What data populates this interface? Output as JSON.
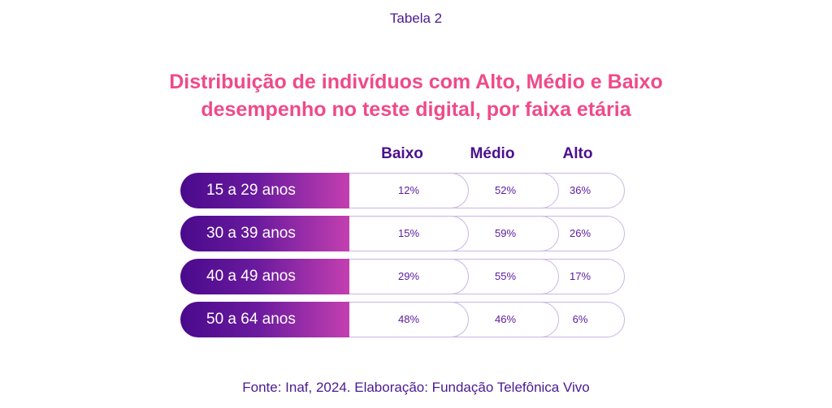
{
  "caption": "Tabela 2",
  "title_line1": "Distribuição de indivíduos com Alto, Médio e Baixo",
  "title_line2": "desempenho no teste digital, por faixa etária",
  "source": "Fonte:  Inaf, 2024. Elaboração: Fundação Telefônica Vivo",
  "colors": {
    "title": "#ef4a8a",
    "text": "#4b1a8f",
    "gradient_start": "#4a0a8c",
    "gradient_end": "#c33fb0",
    "cell_border": "#c9b6e4"
  },
  "chart_data": {
    "type": "table",
    "columns": [
      "Baixo",
      "Médio",
      "Alto"
    ],
    "rows": [
      {
        "label": "15 a 29 anos",
        "values": [
          "12%",
          "52%",
          "36%"
        ]
      },
      {
        "label": "30 a 39 anos",
        "values": [
          "15%",
          "59%",
          "26%"
        ]
      },
      {
        "label": "40 a 49 anos",
        "values": [
          "29%",
          "55%",
          "17%"
        ]
      },
      {
        "label": "50 a 64 anos",
        "values": [
          "48%",
          "46%",
          "6%"
        ]
      }
    ]
  }
}
